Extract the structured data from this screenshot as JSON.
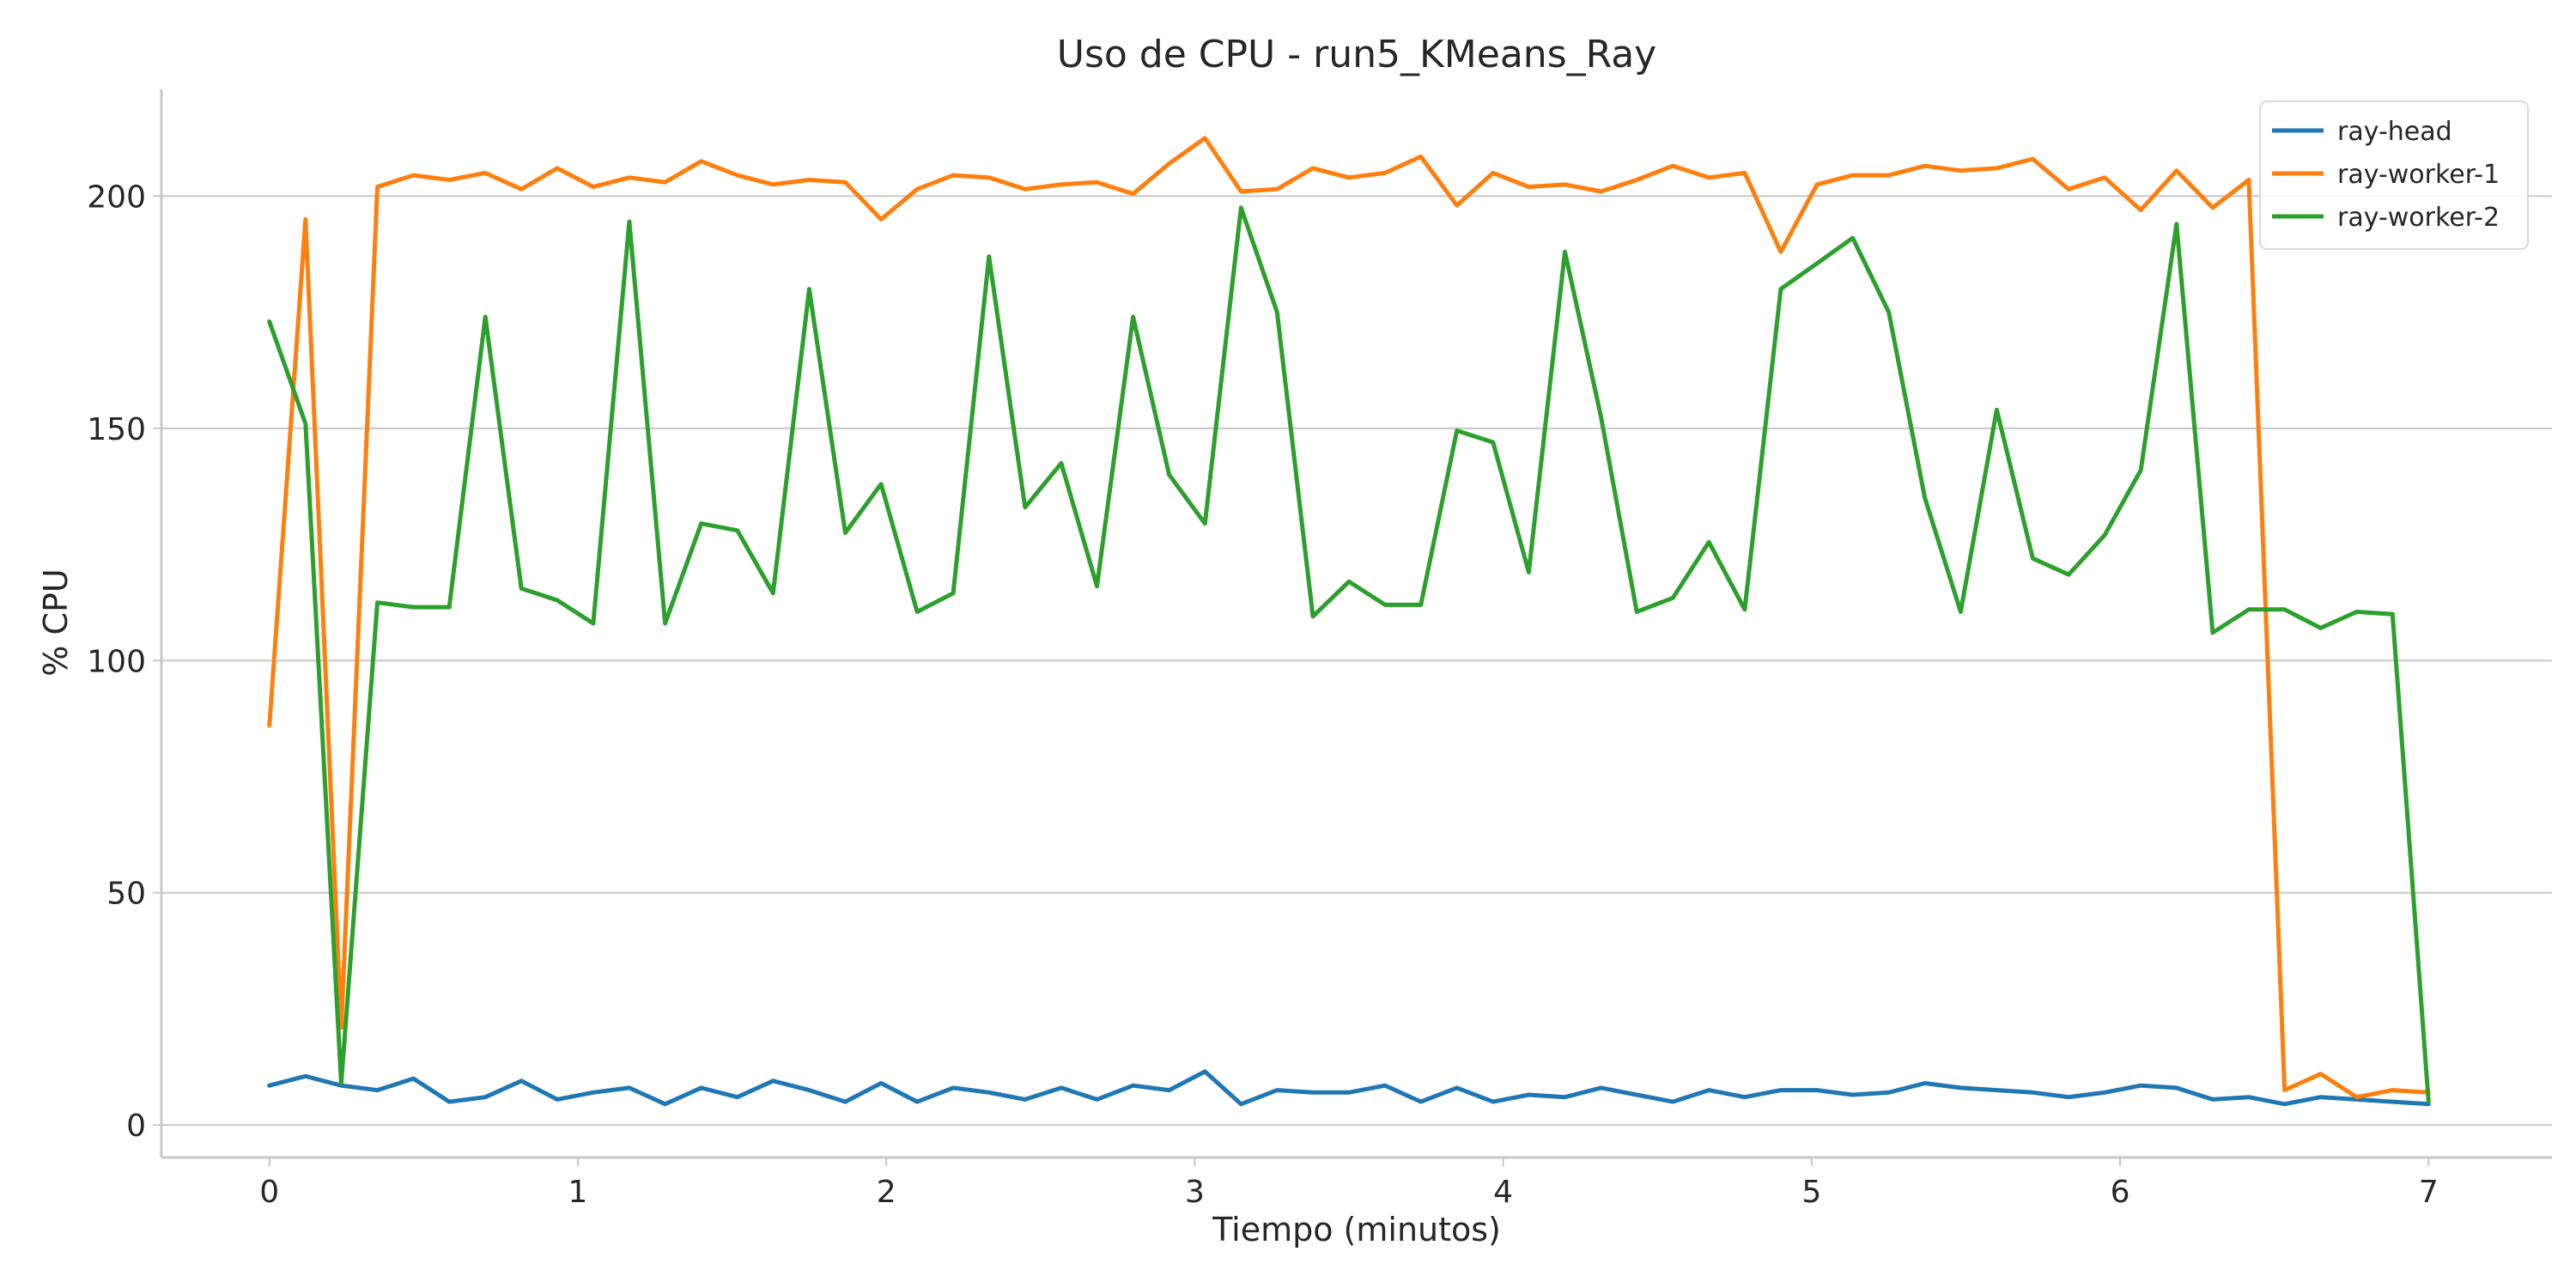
{
  "chart_data": {
    "type": "line",
    "title": "Uso de CPU - run5_KMeans_Ray",
    "xlabel": "Tiempo (minutos)",
    "ylabel": "% CPU",
    "xlim": [
      -0.35,
      7.4
    ],
    "ylim": [
      -7,
      223
    ],
    "xticks": [
      0,
      1,
      2,
      3,
      4,
      5,
      6,
      7
    ],
    "yticks": [
      0,
      50,
      100,
      150,
      200
    ],
    "grid": "horizontal",
    "legend": "top-right",
    "x": [
      0,
      0.117,
      0.233,
      0.35,
      0.467,
      0.583,
      0.7,
      0.817,
      0.933,
      1.05,
      1.167,
      1.283,
      1.4,
      1.517,
      1.633,
      1.75,
      1.867,
      1.983,
      2.1,
      2.217,
      2.333,
      2.45,
      2.567,
      2.683,
      2.8,
      2.917,
      3.033,
      3.15,
      3.267,
      3.383,
      3.5,
      3.617,
      3.733,
      3.85,
      3.967,
      4.083,
      4.2,
      4.317,
      4.433,
      4.55,
      4.667,
      4.783,
      4.9,
      5.017,
      5.133,
      5.25,
      5.367,
      5.483,
      5.6,
      5.717,
      5.833,
      5.95,
      6.067,
      6.183,
      6.3,
      6.417,
      6.533,
      6.65,
      6.767,
      6.883,
      7.0
    ],
    "series": [
      {
        "name": "ray-head",
        "color": "#1f77b4",
        "values": [
          8.5,
          10.5,
          8.5,
          7.5,
          10,
          5,
          6,
          9.5,
          5.5,
          7,
          8,
          4.5,
          8,
          6,
          9.5,
          7.5,
          5,
          9,
          5,
          8,
          7,
          5.5,
          8,
          5.5,
          8.5,
          7.5,
          11.5,
          4.5,
          7.5,
          7,
          7,
          8.5,
          5,
          8,
          5,
          6.5,
          6,
          8,
          6.5,
          5,
          7.5,
          6,
          7.5,
          7.5,
          6.5,
          7,
          9,
          8,
          7.5,
          7,
          6,
          7,
          8.5,
          8,
          5.5,
          6,
          4.5,
          6,
          5.5,
          5,
          4.5
        ]
      },
      {
        "name": "ray-worker-1",
        "color": "#ff7f0e",
        "values": [
          86,
          195,
          21,
          202,
          204.5,
          203.5,
          205,
          201.5,
          206,
          202,
          204,
          203,
          207.5,
          204.5,
          202.5,
          203.5,
          203,
          195,
          201.5,
          204.5,
          204,
          201.5,
          202.5,
          203,
          200.5,
          207,
          212.5,
          201,
          201.5,
          206,
          204,
          205,
          208.5,
          198,
          205,
          202,
          202.5,
          201,
          203.5,
          206.5,
          204,
          205,
          188,
          202.5,
          204.5,
          204.5,
          206.5,
          205.5,
          206,
          208,
          201.5,
          204,
          197,
          205.5,
          197.5,
          203.5,
          7.5,
          11,
          6,
          7.5,
          7
        ]
      },
      {
        "name": "ray-worker-2",
        "color": "#2ca02c",
        "values": [
          173,
          151,
          9,
          112.5,
          111.5,
          111.5,
          174,
          115.5,
          113,
          108,
          194.5,
          108,
          129.5,
          128,
          114.5,
          180,
          127.5,
          138,
          110.5,
          114.5,
          187,
          133,
          142.5,
          116,
          174,
          140,
          129.5,
          197.5,
          175,
          109.5,
          117,
          112,
          112,
          149.5,
          147,
          119,
          188,
          152.5,
          110.5,
          113.5,
          125.5,
          111,
          180,
          185.5,
          191,
          175,
          135,
          110.5,
          154,
          122,
          118.5,
          127,
          141,
          194,
          106,
          111,
          111,
          107,
          110.5,
          110,
          5
        ]
      }
    ]
  }
}
